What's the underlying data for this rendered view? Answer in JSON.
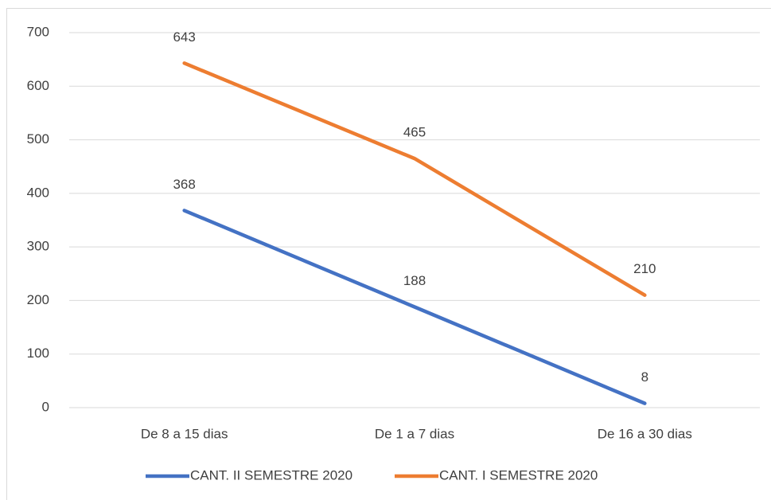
{
  "chart_data": {
    "type": "line",
    "categories": [
      "De 8 a 15 dias",
      "De 1 a 7 dias",
      "De 16 a 30 dias"
    ],
    "series": [
      {
        "name": "CANT. II SEMESTRE 2020",
        "color": "#4472c4",
        "values": [
          368,
          188,
          8
        ]
      },
      {
        "name": "CANT. I SEMESTRE 2020",
        "color": "#ed7d31",
        "values": [
          643,
          465,
          210
        ]
      }
    ],
    "ylim": [
      0,
      700
    ],
    "yticks": [
      0,
      100,
      200,
      300,
      400,
      500,
      600,
      700
    ],
    "grid": true,
    "legend": "bottom"
  }
}
